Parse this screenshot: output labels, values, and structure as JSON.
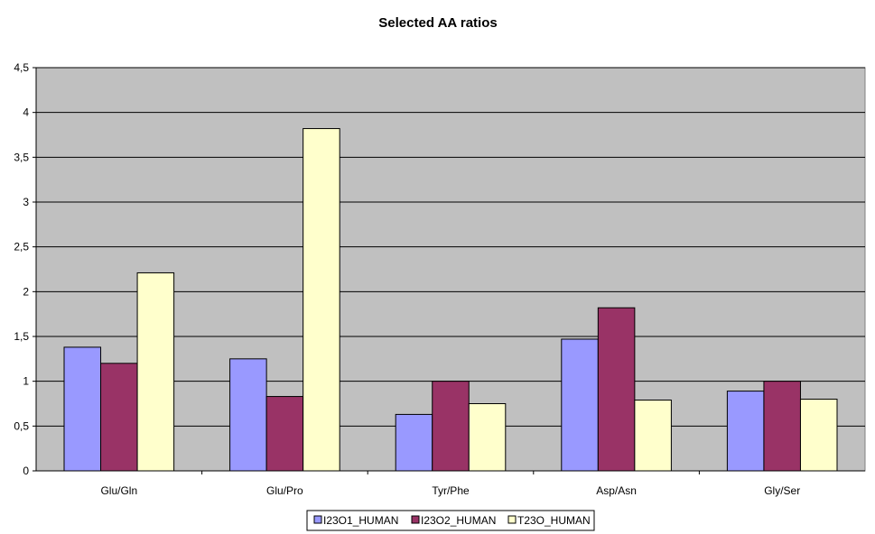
{
  "chart_data": {
    "type": "bar",
    "title": "Selected AA ratios",
    "xlabel": "",
    "ylabel": "",
    "categories": [
      "Glu/Gln",
      "Glu/Pro",
      "Tyr/Phe",
      "Asp/Asn",
      "Gly/Ser"
    ],
    "y_ticks": [
      "0",
      "0,5",
      "1",
      "1,5",
      "2",
      "2,5",
      "3",
      "3,5",
      "4",
      "4,5"
    ],
    "ylim": [
      0,
      4.5
    ],
    "grid": true,
    "legend_position": "bottom",
    "series": [
      {
        "name": "I23O1_HUMAN",
        "color": "#9999ff",
        "values": [
          1.38,
          1.25,
          0.63,
          1.47,
          0.89
        ]
      },
      {
        "name": "I23O2_HUMAN",
        "color": "#993366",
        "values": [
          1.2,
          0.83,
          1.0,
          1.82,
          1.0
        ]
      },
      {
        "name": "T23O_HUMAN",
        "color": "#ffffcc",
        "values": [
          2.21,
          3.82,
          0.75,
          0.79,
          0.8
        ]
      }
    ],
    "plot_background": "#c0c0c0"
  }
}
